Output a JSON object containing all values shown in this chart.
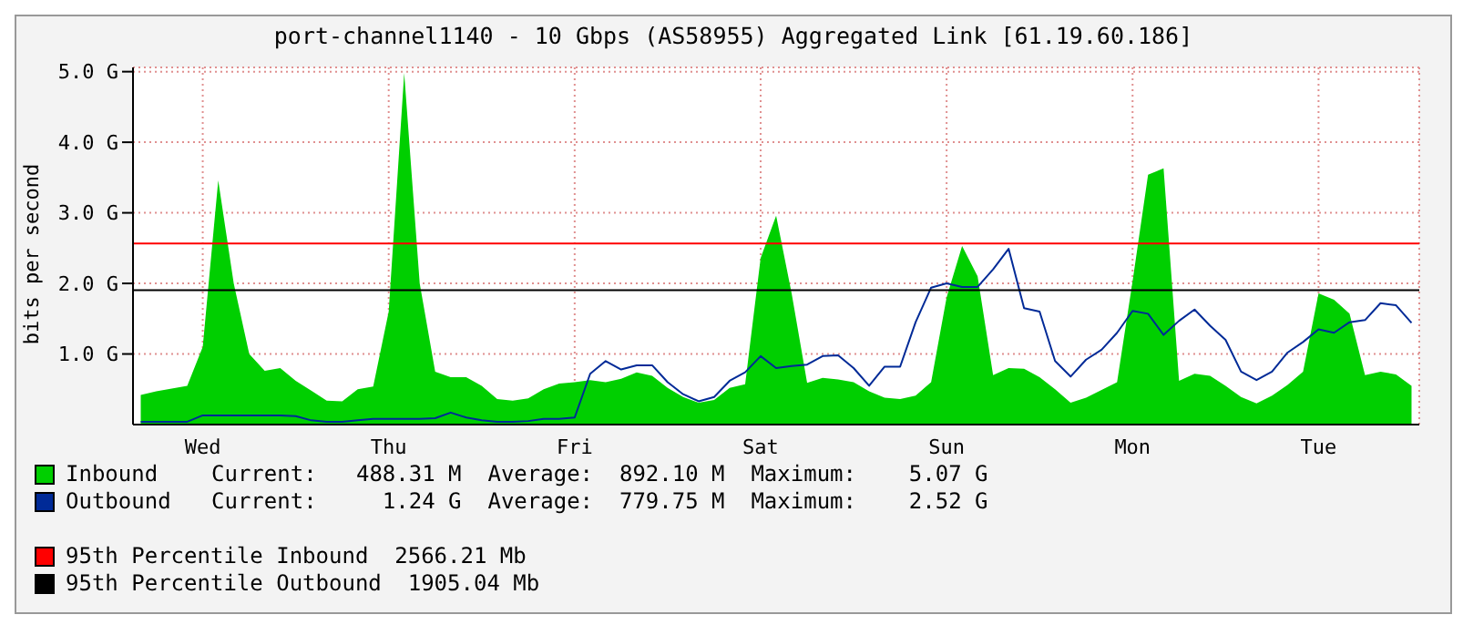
{
  "chart_data": {
    "type": "area",
    "title": "port-channel1140 - 10 Gbps (AS58955) Aggregated Link [61.19.60.186]",
    "ylabel": "bits per second",
    "categories": [
      null,
      null,
      null,
      null,
      "Wed",
      null,
      null,
      null,
      null,
      null,
      null,
      null,
      null,
      null,
      null,
      null,
      "Thu",
      null,
      null,
      null,
      null,
      null,
      null,
      null,
      null,
      null,
      null,
      null,
      "Fri",
      null,
      null,
      null,
      null,
      null,
      null,
      null,
      null,
      null,
      null,
      null,
      "Sat",
      null,
      null,
      null,
      null,
      null,
      null,
      null,
      null,
      null,
      null,
      null,
      "Sun",
      null,
      null,
      null,
      null,
      null,
      null,
      null,
      null,
      null,
      null,
      null,
      "Mon",
      null,
      null,
      null,
      null,
      null,
      null,
      null,
      null,
      null,
      null,
      null,
      "Tue",
      null,
      null,
      null,
      null,
      null,
      null
    ],
    "ylim": [
      0,
      5.06
    ],
    "yticks": [
      {
        "value": 1,
        "label": "1.0 G"
      },
      {
        "value": 2,
        "label": "2.0 G"
      },
      {
        "value": 3,
        "label": "3.0 G"
      },
      {
        "value": 4,
        "label": "4.0 G"
      },
      {
        "value": 5,
        "label": "5.0 G"
      }
    ],
    "grid": true,
    "legend": "bottom",
    "series": [
      {
        "name": "Inbound",
        "color": "#00cf00",
        "values": [
          0.42,
          0.47,
          0.51,
          0.55,
          1.1,
          3.46,
          2.0,
          1.0,
          0.76,
          0.8,
          0.62,
          0.48,
          0.34,
          0.33,
          0.5,
          0.54,
          1.6,
          4.98,
          2.0,
          0.75,
          0.67,
          0.67,
          0.55,
          0.36,
          0.34,
          0.37,
          0.5,
          0.58,
          0.6,
          0.63,
          0.6,
          0.65,
          0.74,
          0.69,
          0.52,
          0.39,
          0.31,
          0.35,
          0.52,
          0.57,
          2.36,
          2.96,
          1.86,
          0.59,
          0.66,
          0.64,
          0.6,
          0.47,
          0.38,
          0.36,
          0.41,
          0.6,
          1.8,
          2.53,
          2.1,
          0.7,
          0.8,
          0.79,
          0.67,
          0.5,
          0.31,
          0.38,
          0.49,
          0.6,
          2.03,
          3.54,
          3.63,
          0.62,
          0.72,
          0.69,
          0.55,
          0.39,
          0.3,
          0.41,
          0.56,
          0.75,
          1.86,
          1.77,
          1.57,
          0.7,
          0.75,
          0.71,
          0.55
        ]
      },
      {
        "name": "Outbound",
        "type": "line",
        "color": "#002a97",
        "values": [
          0.04,
          0.04,
          0.04,
          0.04,
          0.13,
          0.13,
          0.13,
          0.13,
          0.13,
          0.13,
          0.12,
          0.06,
          0.04,
          0.04,
          0.06,
          0.08,
          0.08,
          0.08,
          0.08,
          0.09,
          0.17,
          0.1,
          0.06,
          0.04,
          0.04,
          0.05,
          0.08,
          0.08,
          0.1,
          0.72,
          0.9,
          0.78,
          0.84,
          0.84,
          0.6,
          0.43,
          0.33,
          0.39,
          0.62,
          0.74,
          0.97,
          0.8,
          0.83,
          0.85,
          0.97,
          0.98,
          0.8,
          0.55,
          0.82,
          0.82,
          1.45,
          1.94,
          2.0,
          1.95,
          1.95,
          2.2,
          2.49,
          1.65,
          1.6,
          0.9,
          0.68,
          0.92,
          1.06,
          1.3,
          1.61,
          1.57,
          1.27,
          1.47,
          1.63,
          1.4,
          1.2,
          0.75,
          0.63,
          0.75,
          1.02,
          1.17,
          1.35,
          1.3,
          1.45,
          1.48,
          1.72,
          1.69,
          1.44
        ]
      }
    ],
    "ref_lines": [
      {
        "axis": "y",
        "value": 2.56621,
        "label": "95th Percentile Inbound  2566.21 Mb",
        "color": "#ff0000"
      },
      {
        "axis": "y",
        "value": 1.90504,
        "label": "95th Percentile Outbound  1905.04 Mb",
        "color": "#000000"
      }
    ],
    "annotations": [
      "Current:   488.31 M  Average:  892.10 M  Maximum:    5.07 G",
      "Current:     1.24 G  Average:  779.75 M  Maximum:    2.52 G"
    ]
  }
}
